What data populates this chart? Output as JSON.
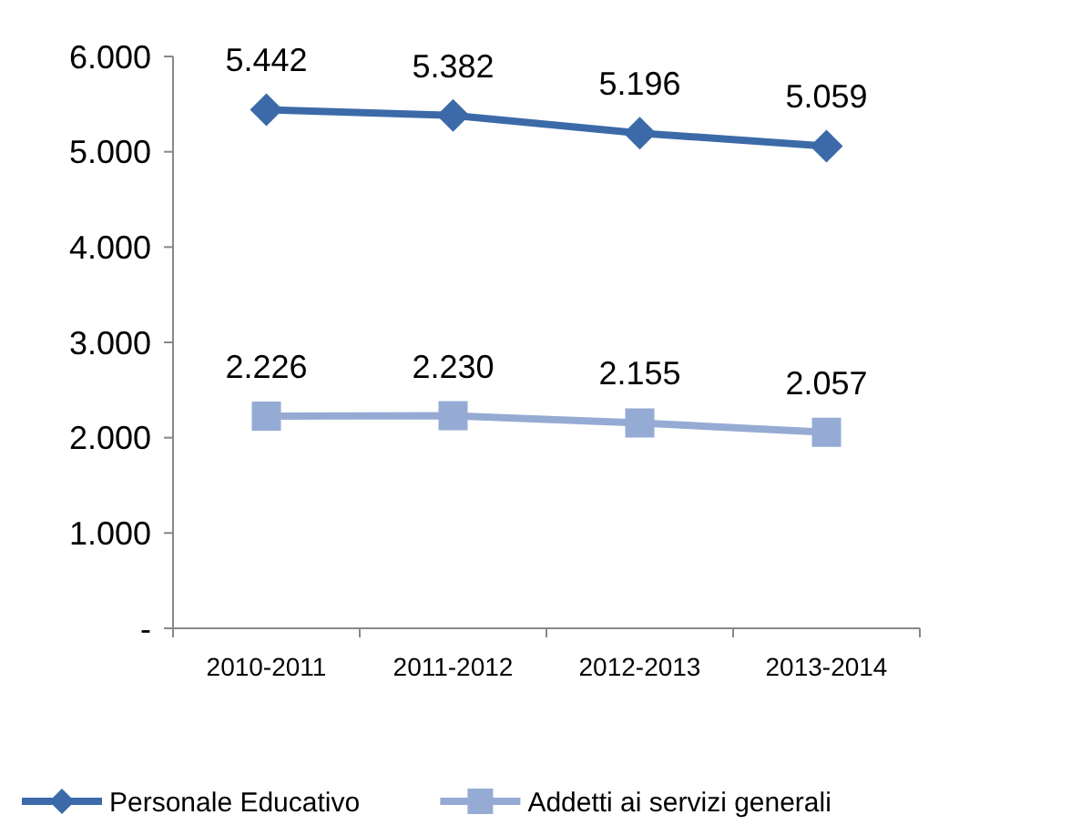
{
  "chart_data": {
    "type": "line",
    "categories": [
      "2010-2011",
      "2011-2012",
      "2012-2013",
      "2013-2014"
    ],
    "series": [
      {
        "name": "Personale Educativo",
        "color": "#3c6aa8",
        "marker": "diamond",
        "values": [
          5442,
          5382,
          5196,
          5059
        ],
        "value_labels": [
          "5.442",
          "5.382",
          "5.196",
          "5.059"
        ]
      },
      {
        "name": "Addetti ai servizi generali",
        "color": "#95abd3",
        "marker": "square",
        "values": [
          2226,
          2230,
          2155,
          2057
        ],
        "value_labels": [
          "2.226",
          "2.230",
          "2.155",
          "2.057"
        ]
      }
    ],
    "ylim": [
      0,
      6000
    ],
    "yticks": [
      {
        "value": 0,
        "label": "-"
      },
      {
        "value": 1000,
        "label": "1.000"
      },
      {
        "value": 2000,
        "label": "2.000"
      },
      {
        "value": 3000,
        "label": "3.000"
      },
      {
        "value": 4000,
        "label": "4.000"
      },
      {
        "value": 5000,
        "label": "5.000"
      },
      {
        "value": 6000,
        "label": "6.000"
      }
    ],
    "grid": false,
    "legend": "bottom",
    "line_style": "solid"
  }
}
